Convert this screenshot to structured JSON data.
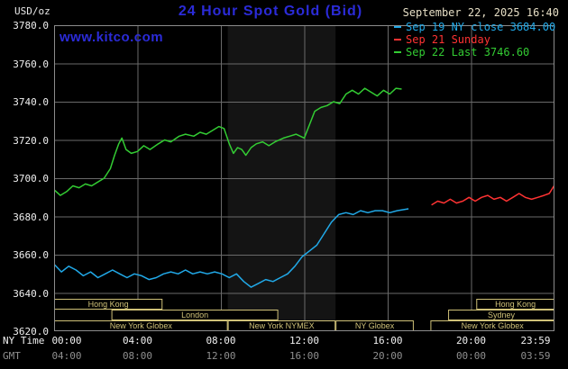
{
  "header": {
    "units": "USD/oz",
    "title": "24 Hour Spot Gold (Bid)",
    "datetime": "September 22, 2025 16:40",
    "watermark": "www.kitco.com"
  },
  "legend": {
    "items": [
      {
        "label": "Sep 19 NY close 3684.00",
        "color": "#21a9e8"
      },
      {
        "label": "Sep 21 Sunday",
        "color": "#ff3333"
      },
      {
        "label": "Sep 22 Last 3746.60",
        "color": "#33cc33"
      }
    ]
  },
  "axes": {
    "y_ticks": [
      "3780.0",
      "3760.0",
      "3740.0",
      "3720.0",
      "3700.0",
      "3680.0",
      "3660.0",
      "3640.0",
      "3620.0"
    ],
    "x_axis_rows": {
      "ny": "NY Time",
      "gmt": "GMT"
    },
    "x_ticks": [
      {
        "hour": 0,
        "ny": "00:00",
        "gmt": "04:00"
      },
      {
        "hour": 4,
        "ny": "04:00",
        "gmt": "08:00"
      },
      {
        "hour": 8,
        "ny": "08:00",
        "gmt": "12:00"
      },
      {
        "hour": 12,
        "ny": "12:00",
        "gmt": "16:00"
      },
      {
        "hour": 16,
        "ny": "16:00",
        "gmt": "20:00"
      },
      {
        "hour": 20,
        "ny": "20:00",
        "gmt": "00:00"
      },
      {
        "hour": 23.983,
        "ny": "23:59",
        "gmt": "03:59"
      }
    ]
  },
  "chart_data": {
    "type": "line",
    "title": "24 Hour Spot Gold (Bid)",
    "ylabel": "USD/oz",
    "ylim": [
      3620,
      3780
    ],
    "xlim_hours": [
      0,
      24
    ],
    "y_tick_step": 20,
    "x_tick_step_hours": 4,
    "grid": {
      "color": "#6a6a6a",
      "x_hours": [
        4,
        8,
        12,
        16,
        20
      ],
      "y_values": [
        3640,
        3660,
        3680,
        3700,
        3720,
        3740,
        3760
      ]
    },
    "border_color": "#8c8c8c",
    "bands": [
      {
        "label": "New York NYMEX session shading",
        "start_hour": 8.33,
        "end_hour": 13.5,
        "color": "#141414"
      }
    ],
    "series": [
      {
        "id": "sep19-ny-close",
        "name": "Sep 19 NY close",
        "close": 3684.0,
        "color": "#21a9e8",
        "x": [
          0,
          0.35,
          0.7,
          1.05,
          1.4,
          1.75,
          2.1,
          2.45,
          2.8,
          3.15,
          3.5,
          3.85,
          4.2,
          4.55,
          4.9,
          5.25,
          5.6,
          5.95,
          6.3,
          6.65,
          7.0,
          7.35,
          7.7,
          8.05,
          8.4,
          8.75,
          9.1,
          9.45,
          9.8,
          10.15,
          10.5,
          10.85,
          11.2,
          11.55,
          11.9,
          12.25,
          12.6,
          12.95,
          13.3,
          13.65,
          14.0,
          14.35,
          14.7,
          15.05,
          15.4,
          15.75,
          16.1,
          16.45,
          17.0
        ],
        "y": [
          3655,
          3651,
          3654,
          3652,
          3649,
          3651,
          3648,
          3650,
          3652,
          3650,
          3648,
          3650,
          3649,
          3647,
          3648,
          3650,
          3651,
          3650,
          3652,
          3650,
          3651,
          3650,
          3651,
          3650,
          3648,
          3650,
          3646,
          3643,
          3645,
          3647,
          3646,
          3648,
          3650,
          3654,
          3659,
          3662,
          3665,
          3671,
          3677,
          3681,
          3682,
          3681,
          3683,
          3682,
          3683,
          3683,
          3682,
          3683,
          3684
        ]
      },
      {
        "id": "sep21-sunday",
        "name": "Sep 21 Sunday",
        "color": "#ff3333",
        "x": [
          18.1,
          18.4,
          18.7,
          19.0,
          19.3,
          19.6,
          19.9,
          20.2,
          20.5,
          20.8,
          21.1,
          21.4,
          21.7,
          22.0,
          22.3,
          22.6,
          22.9,
          23.2,
          23.5,
          23.75,
          23.98
        ],
        "y": [
          3686,
          3688,
          3687,
          3689,
          3687,
          3688,
          3690,
          3688,
          3690,
          3691,
          3689,
          3690,
          3688,
          3690,
          3692,
          3690,
          3689,
          3690,
          3691,
          3692,
          3696
        ]
      },
      {
        "id": "sep22-today",
        "name": "Sep 22",
        "last": 3746.6,
        "color": "#33cc33",
        "x": [
          0,
          0.3,
          0.6,
          0.9,
          1.2,
          1.5,
          1.8,
          2.1,
          2.4,
          2.7,
          2.9,
          3.1,
          3.25,
          3.45,
          3.7,
          4.0,
          4.3,
          4.6,
          5.0,
          5.3,
          5.6,
          6.0,
          6.3,
          6.7,
          7.0,
          7.3,
          7.6,
          7.9,
          8.15,
          8.4,
          8.6,
          8.8,
          9.0,
          9.2,
          9.45,
          9.7,
          10.0,
          10.3,
          10.6,
          11.0,
          11.3,
          11.6,
          12.0,
          12.25,
          12.5,
          12.8,
          13.1,
          13.4,
          13.7,
          14.0,
          14.3,
          14.6,
          14.9,
          15.2,
          15.5,
          15.8,
          16.1,
          16.4,
          16.67
        ],
        "y": [
          3694,
          3691,
          3693,
          3696,
          3695,
          3697,
          3696,
          3698,
          3700,
          3705,
          3712,
          3718,
          3721,
          3715,
          3713,
          3714,
          3717,
          3715,
          3718,
          3720,
          3719,
          3722,
          3723,
          3722,
          3724,
          3723,
          3725,
          3727,
          3726,
          3718,
          3713,
          3716,
          3715,
          3712,
          3716,
          3718,
          3719,
          3717,
          3719,
          3721,
          3722,
          3723,
          3721,
          3728,
          3735,
          3737,
          3738,
          3740,
          3739,
          3744,
          3746,
          3744,
          3747,
          3745,
          3743,
          3746,
          3744,
          3747,
          3746.6
        ]
      }
    ],
    "sessions": {
      "color": "#cfc178",
      "rows": [
        [
          {
            "label": "Hong Kong",
            "start_hour": 0,
            "end_hour": 5.2
          },
          {
            "label": "Hong Kong",
            "start_hour": 20.25,
            "end_hour": 24
          }
        ],
        [
          {
            "label": "London",
            "start_hour": 2.75,
            "end_hour": 10.75
          },
          {
            "label": "Sydney",
            "start_hour": 18.9,
            "end_hour": 24
          }
        ],
        [
          {
            "label": "New York Globex",
            "start_hour": 0,
            "end_hour": 8.33
          },
          {
            "label": "New York NYMEX",
            "start_hour": 8.33,
            "end_hour": 13.5
          },
          {
            "label": "NY Globex",
            "start_hour": 13.5,
            "end_hour": 17.25
          },
          {
            "label": "New York Globex",
            "start_hour": 18.05,
            "end_hour": 24
          }
        ]
      ]
    }
  }
}
